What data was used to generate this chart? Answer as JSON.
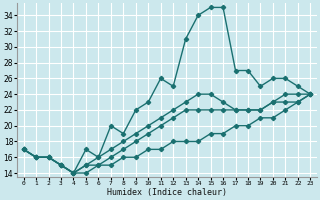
{
  "xlabel": "Humidex (Indice chaleur)",
  "ylabel": "",
  "xlim": [
    -0.5,
    23.5
  ],
  "ylim": [
    13.5,
    35.5
  ],
  "yticks": [
    14,
    16,
    18,
    20,
    22,
    24,
    26,
    28,
    30,
    32,
    34
  ],
  "xticks": [
    0,
    1,
    2,
    3,
    4,
    5,
    6,
    7,
    8,
    9,
    10,
    11,
    12,
    13,
    14,
    15,
    16,
    17,
    18,
    19,
    20,
    21,
    22,
    23
  ],
  "bg_color": "#cce8ed",
  "grid_color": "#ffffff",
  "line_color": "#1a7070",
  "lines": [
    {
      "x": [
        0,
        1,
        2,
        3,
        4,
        5,
        6,
        7,
        8,
        9,
        10,
        11,
        12,
        13,
        14,
        15,
        16,
        17,
        18,
        19,
        20,
        21,
        22,
        23
      ],
      "y": [
        17,
        16,
        16,
        15,
        14,
        17,
        16,
        20,
        19,
        22,
        23,
        26,
        25,
        31,
        34,
        35,
        35,
        27,
        27,
        25,
        26,
        26,
        25,
        24
      ]
    },
    {
      "x": [
        0,
        1,
        2,
        3,
        4,
        5,
        6,
        7,
        8,
        9,
        10,
        11,
        12,
        13,
        14,
        15,
        16,
        17,
        18,
        19,
        20,
        21,
        22,
        23
      ],
      "y": [
        17,
        16,
        16,
        15,
        14,
        15,
        16,
        17,
        18,
        19,
        20,
        21,
        22,
        23,
        24,
        24,
        23,
        22,
        22,
        22,
        23,
        24,
        24,
        24
      ]
    },
    {
      "x": [
        0,
        1,
        2,
        3,
        4,
        5,
        6,
        7,
        8,
        9,
        10,
        11,
        12,
        13,
        14,
        15,
        16,
        17,
        18,
        19,
        20,
        21,
        22,
        23
      ],
      "y": [
        17,
        16,
        16,
        15,
        14,
        15,
        15,
        16,
        17,
        18,
        19,
        20,
        21,
        22,
        22,
        22,
        22,
        22,
        22,
        22,
        23,
        23,
        23,
        24
      ]
    },
    {
      "x": [
        0,
        1,
        2,
        3,
        4,
        5,
        6,
        7,
        8,
        9,
        10,
        11,
        12,
        13,
        14,
        15,
        16,
        17,
        18,
        19,
        20,
        21,
        22,
        23
      ],
      "y": [
        17,
        16,
        16,
        15,
        14,
        14,
        15,
        15,
        16,
        16,
        17,
        17,
        18,
        18,
        18,
        19,
        19,
        20,
        20,
        21,
        21,
        22,
        23,
        24
      ]
    }
  ]
}
